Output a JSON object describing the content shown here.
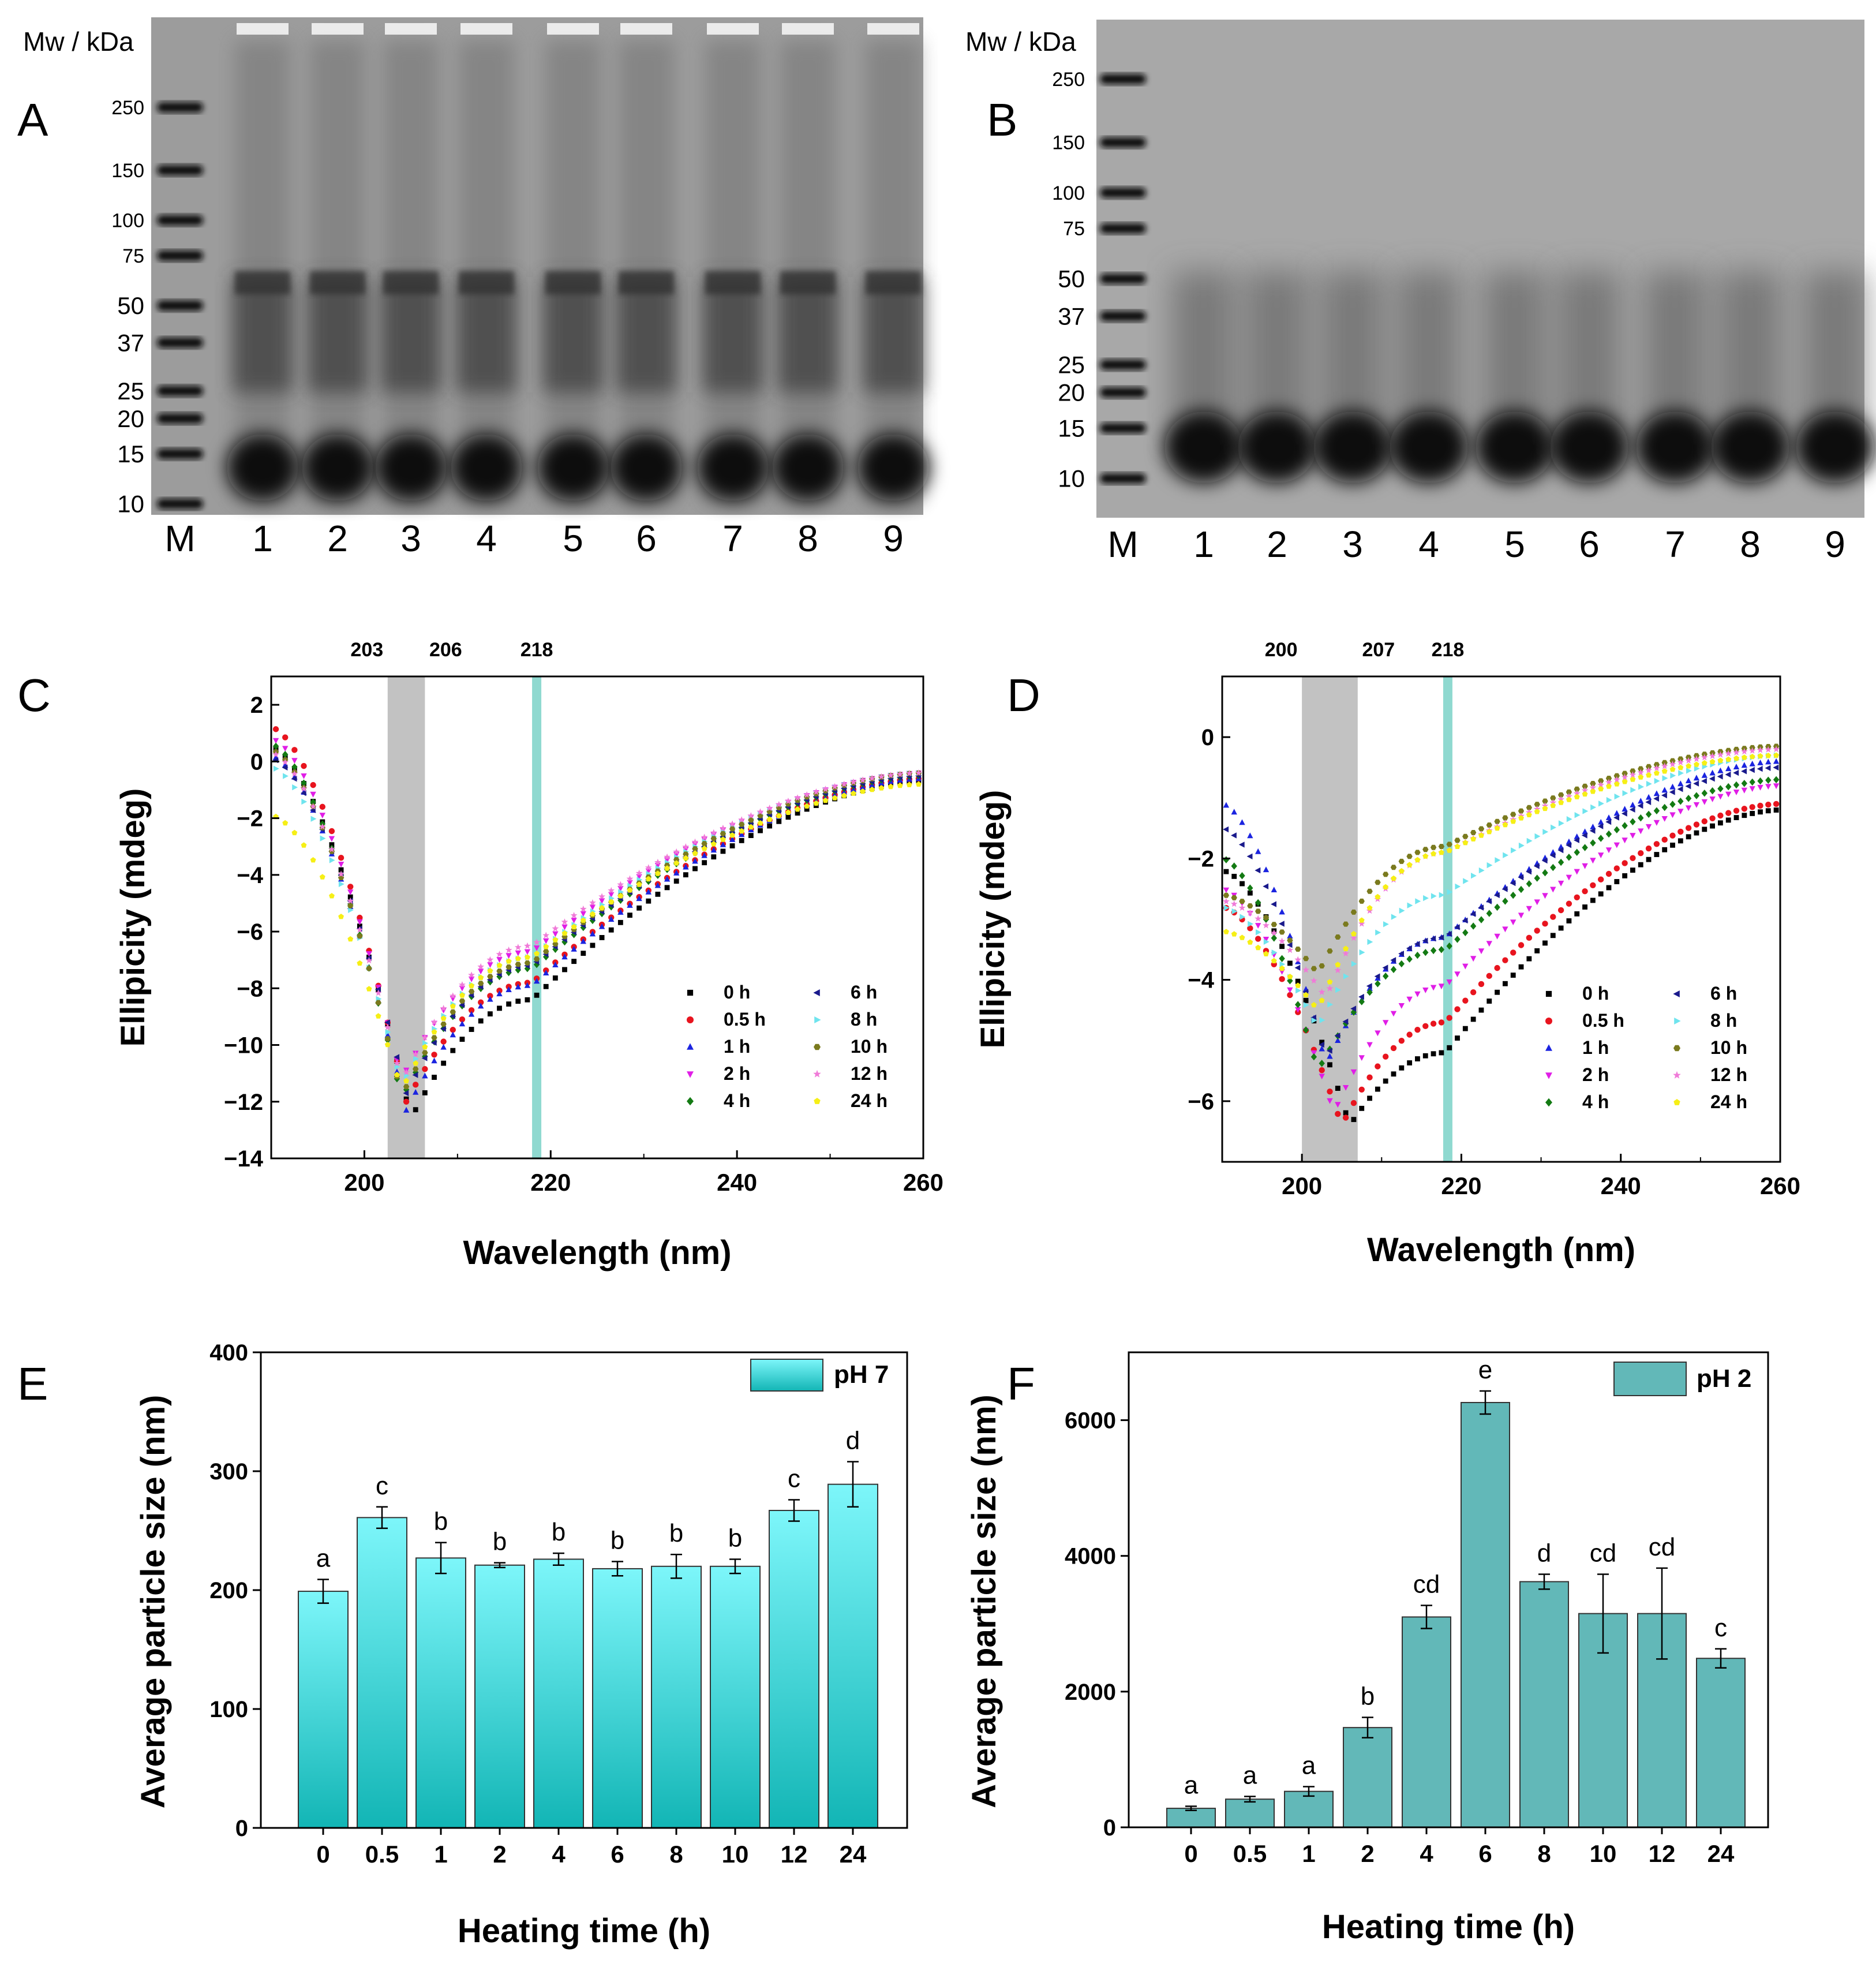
{
  "colors": {
    "gel_bg": "#9a9a9a",
    "band": "#111111",
    "shade_gray": "#c2c2c2",
    "shade_teal": "#8fd9d0",
    "bar_e_top": "#7df6fa",
    "bar_e_bottom": "#12b5b5",
    "bar_f": "#62b8b8",
    "axis": "#000000"
  },
  "gels": [
    {
      "panel": "A",
      "mw_label": "Mw / kDa",
      "markers": [
        "250",
        "150",
        "100",
        "75",
        "50",
        "37",
        "25",
        "20",
        "15",
        "10"
      ],
      "lanes": [
        "M",
        "1",
        "2",
        "3",
        "4",
        "5",
        "6",
        "7",
        "8",
        "9"
      ],
      "bands_kda": [
        250,
        150,
        100,
        75,
        50,
        37,
        25,
        20,
        15,
        10
      ]
    },
    {
      "panel": "B",
      "mw_label": "Mw / kDa",
      "markers": [
        "250",
        "150",
        "100",
        "75",
        "50",
        "37",
        "25",
        "20",
        "15",
        "10"
      ],
      "lanes": [
        "M",
        "1",
        "2",
        "3",
        "4",
        "5",
        "6",
        "7",
        "8",
        "9"
      ],
      "bands_kda": [
        250,
        150,
        100,
        75,
        50,
        37,
        25,
        20,
        15,
        10
      ]
    }
  ],
  "chart_data": [
    {
      "panel": "C",
      "type": "scatter",
      "xlabel": "Wavelength (nm)",
      "ylabel": "Ellipicity (mdeg)",
      "xlim": [
        190,
        260
      ],
      "ylim": [
        -14,
        3
      ],
      "xticks": [
        "200",
        "220",
        "240",
        "260"
      ],
      "yticks": [
        "2",
        "0",
        "−2",
        "−4",
        "−6",
        "−8",
        "−10",
        "−12",
        "−14"
      ],
      "highlight_labels": [
        "203",
        "206",
        "218"
      ],
      "gray_band": [
        202.5,
        206.5
      ],
      "teal_line": 218.5,
      "legend": [
        "0 h",
        "0.5 h",
        "1 h",
        "2 h",
        "4 h",
        "6 h",
        "8 h",
        "10 h",
        "12 h",
        "24 h"
      ],
      "series": [
        {
          "name": "0 h",
          "color": "#000000",
          "marker": "square",
          "min_x": 205,
          "min_y": -12.6,
          "y_start": 0.5,
          "y_end": -0.7,
          "y_at_218": -8.4
        },
        {
          "name": "0.5 h",
          "color": "#e8141e",
          "marker": "circle",
          "min_x": 204.5,
          "min_y": -12.0,
          "y_start": 1.2,
          "y_end": -0.6,
          "y_at_218": -7.8
        },
        {
          "name": "1 h",
          "color": "#1b24e0",
          "marker": "triangle",
          "min_x": 204.5,
          "min_y": -12.3,
          "y_start": 0.2,
          "y_end": -0.6,
          "y_at_218": -7.9
        },
        {
          "name": "2 h",
          "color": "#e01ee6",
          "marker": "tri-down",
          "min_x": 204,
          "min_y": -11.2,
          "y_start": 0.8,
          "y_end": -0.4,
          "y_at_218": -6.7
        },
        {
          "name": "4 h",
          "color": "#137a13",
          "marker": "diamond",
          "min_x": 204,
          "min_y": -11.9,
          "y_start": 0.6,
          "y_end": -0.5,
          "y_at_218": -7.3
        },
        {
          "name": "6 h",
          "color": "#1a1a8c",
          "marker": "tri-left",
          "min_x": 204.5,
          "min_y": -11.7,
          "y_start": 0.1,
          "y_end": -0.5,
          "y_at_218": -7.2
        },
        {
          "name": "8 h",
          "color": "#6fe4ee",
          "marker": "tri-right",
          "min_x": 204,
          "min_y": -11.4,
          "y_start": -0.2,
          "y_end": -0.4,
          "y_at_218": -6.9
        },
        {
          "name": "10 h",
          "color": "#7a7a1e",
          "marker": "hexagon",
          "min_x": 204,
          "min_y": -11.8,
          "y_start": 0.4,
          "y_end": -0.4,
          "y_at_218": -7.1
        },
        {
          "name": "12 h",
          "color": "#f07ad8",
          "marker": "star",
          "min_x": 204,
          "min_y": -11.3,
          "y_start": 0.3,
          "y_end": -0.4,
          "y_at_218": -6.5
        },
        {
          "name": "24 h",
          "color": "#f6ef16",
          "marker": "pentagon",
          "min_x": 204,
          "min_y": -11.6,
          "y_start": -1.9,
          "y_end": -0.8,
          "y_at_218": -6.9
        }
      ]
    },
    {
      "panel": "D",
      "type": "scatter",
      "xlabel": "Wavelength (nm)",
      "ylabel": "Ellipicity (mdeg)",
      "xlim": [
        190,
        260
      ],
      "ylim": [
        -7,
        1
      ],
      "xticks": [
        "200",
        "220",
        "240",
        "260"
      ],
      "yticks": [
        "0",
        "−2",
        "−4",
        "−6"
      ],
      "highlight_labels": [
        "200",
        "207",
        "218"
      ],
      "gray_band": [
        200,
        207
      ],
      "teal_line": 218.3,
      "legend": [
        "0 h",
        "0.5 h",
        "1 h",
        "2 h",
        "4 h",
        "6 h",
        "8 h",
        "10 h",
        "12 h",
        "24 h"
      ],
      "series": [
        {
          "name": "0 h",
          "color": "#000000",
          "marker": "square",
          "min_x": 206,
          "min_y": -6.4,
          "y_start": -2.2,
          "y_end": -1.2,
          "y_at_218": -5.2
        },
        {
          "name": "0.5 h",
          "color": "#e8141e",
          "marker": "circle",
          "min_x": 205,
          "min_y": -6.4,
          "y_start": -2.8,
          "y_end": -1.1,
          "y_at_218": -4.7
        },
        {
          "name": "1 h",
          "color": "#1b24e0",
          "marker": "triangle",
          "min_x": 203,
          "min_y": -5.4,
          "y_start": -1.1,
          "y_end": -0.4,
          "y_at_218": -3.3
        },
        {
          "name": "2 h",
          "color": "#e01ee6",
          "marker": "tri-down",
          "min_x": 204,
          "min_y": -6.2,
          "y_start": -2.5,
          "y_end": -0.8,
          "y_at_218": -4.1
        },
        {
          "name": "4 h",
          "color": "#137a13",
          "marker": "diamond",
          "min_x": 202,
          "min_y": -5.5,
          "y_start": -2.0,
          "y_end": -0.7,
          "y_at_218": -3.5
        },
        {
          "name": "6 h",
          "color": "#1a1a8c",
          "marker": "tri-left",
          "min_x": 203,
          "min_y": -5.3,
          "y_start": -1.5,
          "y_end": -0.5,
          "y_at_218": -3.3
        },
        {
          "name": "8 h",
          "color": "#6fe4ee",
          "marker": "tri-right",
          "min_x": 202,
          "min_y": -4.8,
          "y_start": -2.8,
          "y_end": -0.3,
          "y_at_218": -2.6
        },
        {
          "name": "10 h",
          "color": "#7a7a1e",
          "marker": "hexagon",
          "min_x": 202,
          "min_y": -3.9,
          "y_start": -2.6,
          "y_end": -0.15,
          "y_at_218": -1.8
        },
        {
          "name": "12 h",
          "color": "#f07ad8",
          "marker": "star",
          "min_x": 203,
          "min_y": -4.3,
          "y_start": -2.7,
          "y_end": -0.2,
          "y_at_218": -1.9
        },
        {
          "name": "24 h",
          "color": "#f6ef16",
          "marker": "pentagon",
          "min_x": 202,
          "min_y": -4.5,
          "y_start": -3.2,
          "y_end": -0.3,
          "y_at_218": -1.9
        }
      ]
    },
    {
      "panel": "E",
      "type": "bar",
      "xlabel": "Heating time (h)",
      "ylabel": "Average particle size (nm)",
      "legend": "pH 7",
      "ylim": [
        0,
        400
      ],
      "yticks": [
        "0",
        "100",
        "200",
        "300",
        "400"
      ],
      "categories": [
        "0",
        "0.5",
        "1",
        "2",
        "4",
        "6",
        "8",
        "10",
        "12",
        "24"
      ],
      "values": [
        199,
        261,
        227,
        221,
        226,
        218,
        220,
        220,
        267,
        289
      ],
      "errors": [
        10,
        9,
        13,
        2,
        5,
        6,
        10,
        6,
        9,
        19
      ],
      "letters": [
        "a",
        "c",
        "b",
        "b",
        "b",
        "b",
        "b",
        "b",
        "c",
        "d"
      ]
    },
    {
      "panel": "F",
      "type": "bar",
      "xlabel": "Heating time (h)",
      "ylabel": "Average particle size (nm)",
      "legend": "pH 2",
      "ylim": [
        0,
        7000
      ],
      "yticks": [
        "0",
        "2000",
        "4000",
        "6000"
      ],
      "categories": [
        "0",
        "0.5",
        "1",
        "2",
        "4",
        "6",
        "8",
        "10",
        "12",
        "24"
      ],
      "values": [
        280,
        415,
        530,
        1470,
        3100,
        6260,
        3620,
        3150,
        3150,
        2490
      ],
      "errors": [
        30,
        40,
        70,
        150,
        170,
        170,
        110,
        580,
        670,
        140
      ],
      "letters": [
        "a",
        "a",
        "a",
        "b",
        "cd",
        "e",
        "d",
        "cd",
        "cd",
        "c"
      ]
    }
  ]
}
